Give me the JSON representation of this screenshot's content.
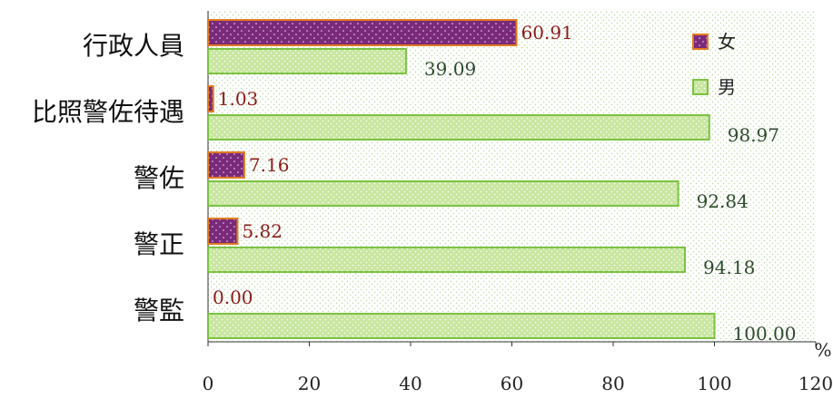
{
  "chart_data": {
    "type": "bar",
    "orientation": "horizontal",
    "categories": [
      "行政人員",
      "比照警佐待遇",
      "警佐",
      "警正",
      "警監"
    ],
    "series": [
      {
        "name": "女",
        "values": [
          60.91,
          1.03,
          7.16,
          5.82,
          0.0
        ],
        "labels": [
          "60.91",
          "1.03",
          "7.16",
          "5.82",
          "0.00"
        ],
        "color": "#7a2a7a",
        "border": "#e07b20",
        "label_color": "#8b1a1a"
      },
      {
        "name": "男",
        "values": [
          39.09,
          98.97,
          92.84,
          94.18,
          100.0
        ],
        "labels": [
          "39.09",
          "98.97",
          "92.84",
          "94.18",
          "100.00"
        ],
        "color": "#c8e6a0",
        "border": "#7cc242",
        "label_color": "#2e4a2e"
      }
    ],
    "xlim": [
      0,
      120
    ],
    "xticks": [
      "0",
      "20",
      "40",
      "60",
      "80",
      "100",
      "120"
    ],
    "unit": "%",
    "legend_position": "top-right",
    "plot_background": "dotted light green pattern"
  }
}
